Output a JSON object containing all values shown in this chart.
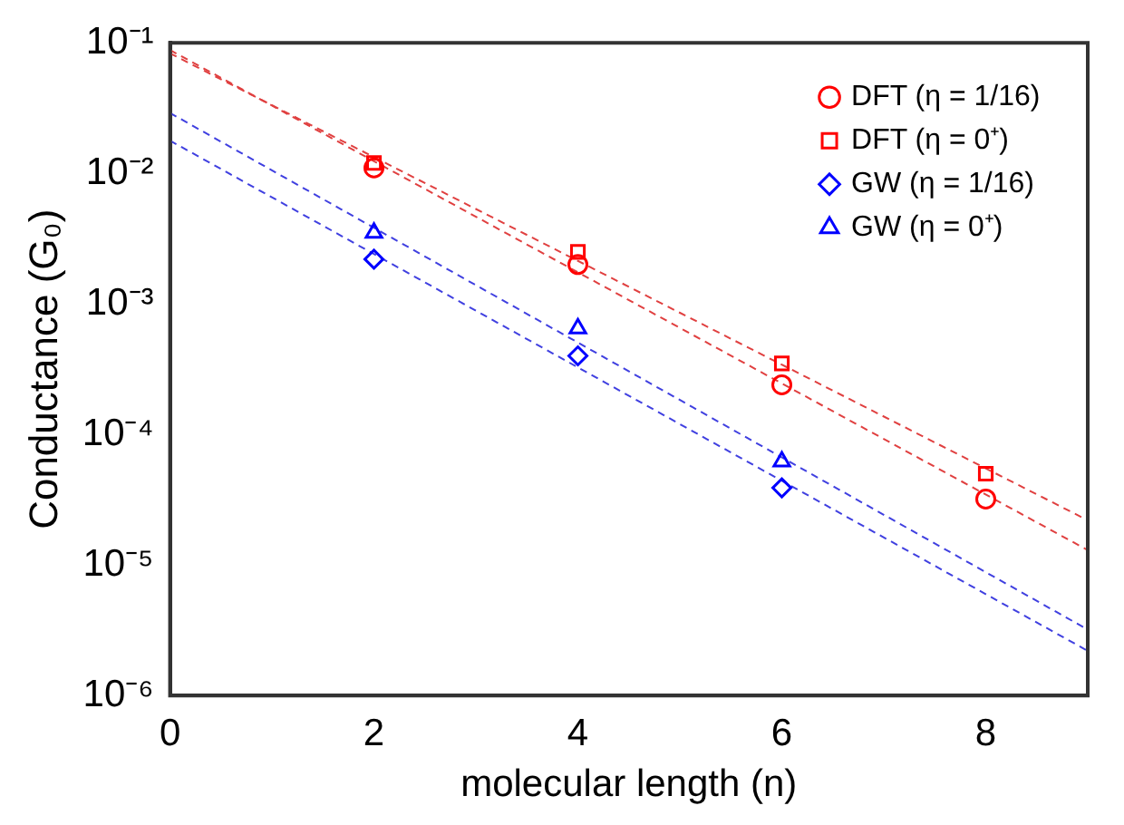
{
  "chart_data": {
    "type": "scatter",
    "xlabel": "molecular length (n)",
    "ylabel": "Conductance (G₀)",
    "xlim": [
      0,
      9
    ],
    "xticks": [
      0,
      2,
      4,
      6,
      8
    ],
    "ylim": [
      1e-06,
      0.1
    ],
    "yticks": [
      {
        "value": 1e-06,
        "label": "10⁻⁶"
      },
      {
        "value": 1e-05,
        "label": "10⁻⁵"
      },
      {
        "value": 0.0001,
        "label": "10⁻⁴"
      },
      {
        "value": 0.001,
        "label": "10⁻³"
      },
      {
        "value": 0.01,
        "label": "10⁻²"
      },
      {
        "value": 0.1,
        "label": "10⁻¹"
      }
    ],
    "log": "y",
    "grid": false,
    "legend": "top right",
    "series": [
      {
        "name": "DFT (η = 1/16)",
        "marker": "circle",
        "color": "#ff0000",
        "x": [
          2,
          4,
          6,
          8
        ],
        "values": [
          0.011,
          0.002,
          0.00024,
          3.2e-05
        ]
      },
      {
        "name": "DFT (η = 0⁺)",
        "marker": "square",
        "color": "#ff0000",
        "x": [
          2,
          4,
          6,
          8
        ],
        "values": [
          0.012,
          0.0025,
          0.00035,
          5e-05
        ]
      },
      {
        "name": "GW (η = 1/16)",
        "marker": "diamond",
        "color": "#0000ff",
        "x": [
          2,
          4,
          6
        ],
        "values": [
          0.0022,
          0.0004,
          3.9e-05
        ]
      },
      {
        "name": "GW (η = 0⁺)",
        "marker": "triangle",
        "color": "#0000ff",
        "x": [
          2,
          4,
          6
        ],
        "values": [
          0.0035,
          0.00065,
          6.2e-05
        ]
      },
      {
        "type": "line",
        "marker": "none",
        "line_style": "dashed",
        "color": "#e04040",
        "x": [
          0,
          9
        ],
        "values": [
          0.088,
          1.3e-05
        ]
      },
      {
        "type": "line",
        "marker": "none",
        "line_style": "dashed",
        "color": "#e04040",
        "x": [
          0,
          9
        ],
        "values": [
          0.083,
          2.2e-05
        ]
      },
      {
        "type": "line",
        "marker": "none",
        "line_style": "dashed",
        "color": "#4040e0",
        "x": [
          0,
          9
        ],
        "values": [
          0.0178,
          2.2e-06
        ]
      },
      {
        "type": "line",
        "marker": "none",
        "line_style": "dashed",
        "color": "#4040e0",
        "x": [
          0,
          9
        ],
        "values": [
          0.029,
          3.2e-06
        ]
      }
    ]
  }
}
